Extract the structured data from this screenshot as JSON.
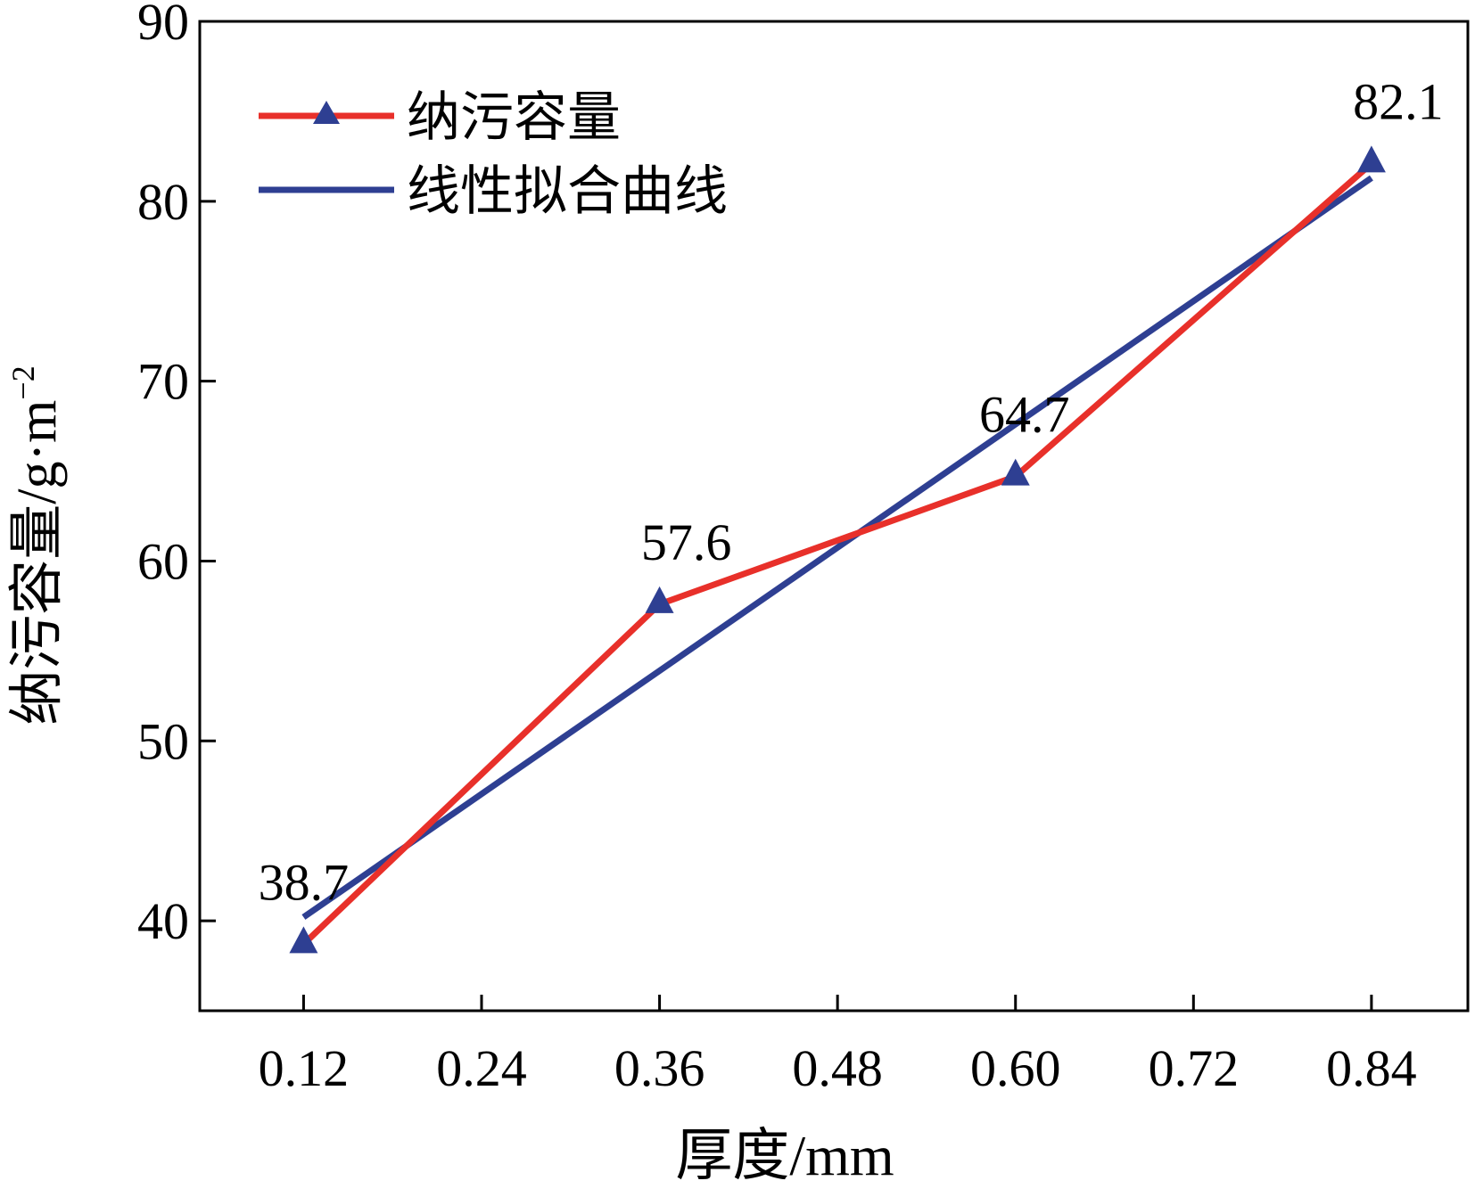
{
  "chart_data": {
    "type": "line",
    "title": "",
    "xlabel": "厚度/mm",
    "ylabel": "纳污容量/g·m",
    "ylabel_sup": "−2",
    "x": [
      0.12,
      0.36,
      0.6,
      0.84
    ],
    "xlim": [
      0.05,
      0.905
    ],
    "ylim": [
      35,
      90
    ],
    "x_ticks": [
      0.12,
      0.24,
      0.36,
      0.48,
      0.6,
      0.72,
      0.84
    ],
    "x_tick_labels": [
      "0.12",
      "0.24",
      "0.36",
      "0.48",
      "0.60",
      "0.72",
      "0.84"
    ],
    "y_ticks": [
      40,
      50,
      60,
      70,
      80,
      90
    ],
    "y_tick_labels": [
      "40",
      "50",
      "60",
      "70",
      "80",
      "90"
    ],
    "grid": false,
    "legend_position": "top-left",
    "series": [
      {
        "name": "纳污容量",
        "color": "#e8302a",
        "marker_color": "#2e3f92",
        "marker": "triangle",
        "x": [
          0.12,
          0.36,
          0.6,
          0.84
        ],
        "values": [
          38.7,
          57.6,
          64.7,
          82.1
        ],
        "data_labels": [
          "38.7",
          "57.6",
          "64.7",
          "82.1"
        ]
      },
      {
        "name": "线性拟合曲线",
        "color": "#2e3f92",
        "type": "fit-line",
        "x": [
          0.12,
          0.84
        ],
        "values": [
          40.2,
          81.3
        ]
      }
    ]
  }
}
